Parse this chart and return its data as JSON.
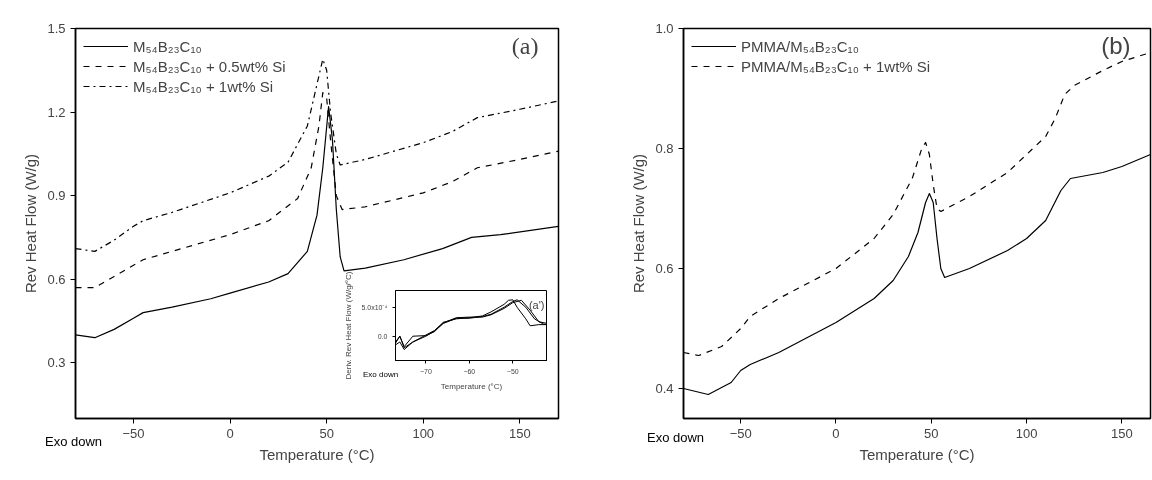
{
  "chart_data": [
    {
      "type": "line",
      "xlabel": "Temperature (°C)",
      "ylabel": "Rev Heat Flow (W/g)",
      "annotations": [
        "(a)",
        "Exo down"
      ],
      "xlim": [
        -80,
        170
      ],
      "ylim": [
        0.1,
        1.5
      ],
      "xticks": [
        -50,
        0,
        50,
        100,
        150
      ],
      "yticks": [
        0.3,
        0.6,
        0.9,
        1.2,
        1.5
      ],
      "grid": false,
      "legend": "top left",
      "series": [
        {
          "name": "M₅₄B₂₃C₁₀",
          "color": "#000000",
          "line_style": "solid",
          "x": [
            -80,
            -70,
            -60,
            -50,
            -45,
            -30,
            -10,
            0,
            20,
            30,
            40,
            45,
            48,
            51,
            53,
            55,
            57,
            59,
            70,
            90,
            110,
            125,
            140,
            170
          ],
          "values": [
            0.4,
            0.39,
            0.42,
            0.46,
            0.48,
            0.5,
            0.53,
            0.55,
            0.59,
            0.62,
            0.7,
            0.83,
            1.0,
            1.22,
            1.1,
            0.85,
            0.68,
            0.63,
            0.64,
            0.67,
            0.71,
            0.75,
            0.76,
            0.79
          ]
        },
        {
          "name": "M₅₄B₂₃C₁₀ + 0.5wt% Si",
          "color": "#000000",
          "line_style": "dashed",
          "x": [
            -80,
            -70,
            -60,
            -50,
            -45,
            -30,
            0,
            20,
            35,
            42,
            46,
            48,
            50,
            52,
            55,
            58,
            70,
            100,
            115,
            128,
            150,
            170
          ],
          "values": [
            0.57,
            0.57,
            0.61,
            0.65,
            0.67,
            0.7,
            0.76,
            0.81,
            0.89,
            1.0,
            1.15,
            1.27,
            1.25,
            1.1,
            0.9,
            0.85,
            0.86,
            0.91,
            0.95,
            1.0,
            1.03,
            1.06
          ]
        },
        {
          "name": "M₅₄B₂₃C₁₀ + 1wt% Si",
          "color": "#000000",
          "line_style": "dashdot",
          "x": [
            -80,
            -70,
            -60,
            -50,
            -45,
            -30,
            0,
            20,
            30,
            40,
            45,
            48,
            50,
            52,
            55,
            57,
            70,
            100,
            115,
            128,
            150,
            170
          ],
          "values": [
            0.71,
            0.7,
            0.74,
            0.79,
            0.81,
            0.84,
            0.91,
            0.97,
            1.02,
            1.15,
            1.3,
            1.39,
            1.35,
            1.2,
            1.05,
            1.01,
            1.03,
            1.09,
            1.13,
            1.18,
            1.21,
            1.24
          ]
        }
      ]
    },
    {
      "type": "line",
      "xlabel": "Temperature (°C)",
      "ylabel": "Deriv. Rev Heat Flow (W/g/°C)",
      "annotations": [
        "(a')",
        "Exo down"
      ],
      "xlim": [
        -77,
        -42
      ],
      "ylim": [
        -0.00042,
        0.00079
      ],
      "xticks": [
        -70,
        -60,
        -50
      ],
      "yticks": [
        {
          "value": 0,
          "label": "0.0"
        },
        {
          "value": 0.0005,
          "label": "5.0x10⁻⁴"
        }
      ],
      "grid": false,
      "series": [
        {
          "color": "#000000",
          "line_style": "solid",
          "x": [
            -77,
            -76,
            -75,
            -73,
            -70,
            -68,
            -66,
            -63,
            -60,
            -57,
            -55,
            -52,
            -51,
            -50,
            -49,
            -47,
            -46,
            -44,
            -42
          ],
          "values": [
            -0.00015,
            -0.0001,
            -0.00023,
            -0.0001,
            2e-05,
            0.0001,
            0.00024,
            0.0003,
            0.00032,
            0.00035,
            0.00042,
            0.00055,
            0.00062,
            0.00063,
            0.0005,
            0.0003,
            0.00018,
            0.0002,
            0.0002
          ]
        },
        {
          "color": "#000000",
          "line_style": "solid",
          "x": [
            -77,
            -76,
            -75,
            -73,
            -70,
            -68,
            -66,
            -63,
            -60,
            -57,
            -55,
            -52,
            -50,
            -49,
            -47,
            -45,
            -43,
            -42
          ],
          "values": [
            -0.00012,
            0.0,
            -0.0002,
            -0.0001,
            0.0,
            9e-05,
            0.00022,
            0.00031,
            0.00031,
            0.00034,
            0.00038,
            0.0005,
            0.0006,
            0.00063,
            0.0005,
            0.0003,
            0.00021,
            0.0002
          ]
        },
        {
          "color": "#000000",
          "line_style": "solid",
          "x": [
            -77,
            -76,
            -75,
            -73,
            -70,
            -68,
            -66,
            -63,
            -60,
            -57,
            -55,
            -52,
            -50,
            -48,
            -46,
            -44,
            -42
          ],
          "values": [
            -0.0001,
            0.0,
            -0.00018,
            0.0,
            1e-05,
            8e-05,
            0.00023,
            0.00032,
            0.00033,
            0.00033,
            0.00037,
            0.00048,
            0.00058,
            0.00062,
            0.00045,
            0.00025,
            0.00022
          ]
        }
      ]
    },
    {
      "type": "line",
      "xlabel": "Temperature (°C)",
      "ylabel": "Rev Heat Flow (W/g)",
      "annotations": [
        "(b)",
        "Exo down"
      ],
      "xlim": [
        -80,
        165
      ],
      "ylim": [
        0.35,
        1.0
      ],
      "xticks": [
        -50,
        0,
        50,
        100,
        150
      ],
      "yticks": [
        0.4,
        0.6,
        0.8,
        {
          "value": 1.0,
          "label": "1.0"
        }
      ],
      "grid": false,
      "legend": "top left",
      "series": [
        {
          "name": "PMMA/M₅₄B₂₃C₁₀",
          "color": "#000000",
          "line_style": "solid",
          "x": [
            -80,
            -67,
            -55,
            -50,
            -45,
            -30,
            0,
            20,
            30,
            38,
            43,
            47,
            49,
            51,
            53,
            55,
            57,
            70,
            90,
            100,
            110,
            118,
            123,
            140,
            150,
            165
          ],
          "values": [
            0.4,
            0.39,
            0.41,
            0.43,
            0.44,
            0.46,
            0.51,
            0.55,
            0.58,
            0.62,
            0.66,
            0.71,
            0.725,
            0.71,
            0.65,
            0.6,
            0.585,
            0.6,
            0.63,
            0.65,
            0.68,
            0.73,
            0.75,
            0.76,
            0.77,
            0.79
          ]
        },
        {
          "name": "PMMA/M₅₄B₂₃C₁₀ + 1wt% Si",
          "color": "#000000",
          "line_style": "dashed",
          "x": [
            -80,
            -72,
            -60,
            -50,
            -45,
            -30,
            0,
            20,
            30,
            40,
            45,
            47,
            49,
            51,
            53,
            55,
            70,
            90,
            100,
            110,
            115,
            120,
            125,
            140,
            150,
            165
          ],
          "values": [
            0.46,
            0.455,
            0.47,
            0.5,
            0.52,
            0.55,
            0.6,
            0.65,
            0.69,
            0.75,
            0.8,
            0.81,
            0.79,
            0.74,
            0.7,
            0.695,
            0.72,
            0.76,
            0.79,
            0.82,
            0.85,
            0.89,
            0.905,
            0.93,
            0.945,
            0.96
          ]
        }
      ]
    }
  ]
}
